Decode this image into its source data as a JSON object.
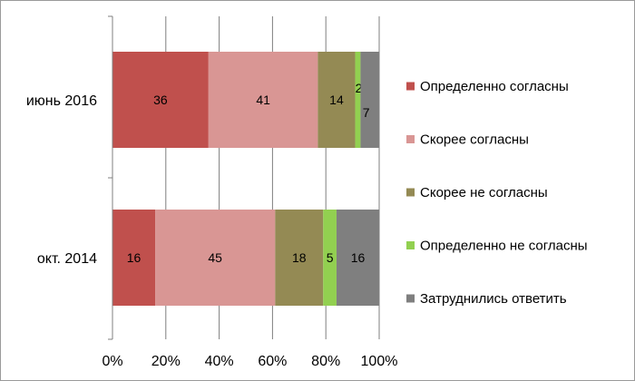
{
  "chart_data": {
    "type": "bar",
    "orientation": "horizontal",
    "stacked": "percent",
    "categories": [
      "июнь 2016",
      "окт. 2014"
    ],
    "series": [
      {
        "name": "Определенно согласны",
        "values": [
          36,
          16
        ],
        "color": "#c0504d"
      },
      {
        "name": "Скорее согласны",
        "values": [
          41,
          45
        ],
        "color": "#d99694"
      },
      {
        "name": "Скорее не согласны",
        "values": [
          14,
          18
        ],
        "color": "#948a54"
      },
      {
        "name": "Определенно не согласны",
        "values": [
          2,
          5
        ],
        "color": "#92d050"
      },
      {
        "name": "Затруднились ответить",
        "values": [
          7,
          16
        ],
        "color": "#7f7f7f"
      }
    ],
    "xlim": [
      0,
      100
    ],
    "x_ticks": [
      "0%",
      "20%",
      "40%",
      "60%",
      "80%",
      "100%"
    ],
    "grid": "vertical-major",
    "grid_color": "#7f7f7f",
    "legend_position": "right",
    "title": "",
    "xlabel": "",
    "ylabel": ""
  }
}
